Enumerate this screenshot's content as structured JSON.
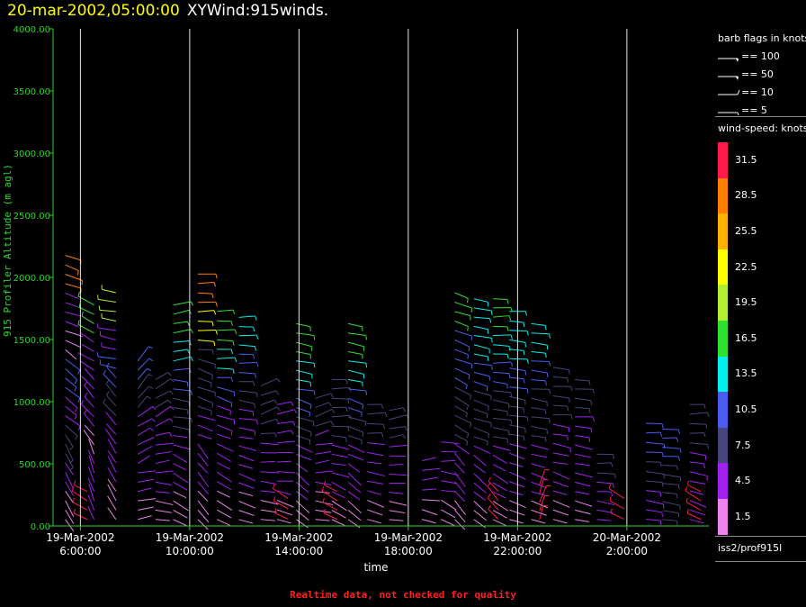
{
  "title": {
    "date": "20-mar-2002,05:00:00",
    "name": "XYWind:915winds."
  },
  "footer": "Realtime data, not checked for quality",
  "legend": {
    "flags_header": "barb flags in knots",
    "flags": [
      {
        "label": "== 100",
        "icon": "pennant-100-icon"
      },
      {
        "label": "== 50",
        "icon": "pennant-50-icon"
      },
      {
        "label": "== 10",
        "icon": "full-barb-icon"
      },
      {
        "label": "== 5",
        "icon": "half-barb-icon"
      }
    ],
    "speed_header": "wind-speed: knots",
    "colorbar": [
      {
        "label": "31.5",
        "color": "#ff1a4a"
      },
      {
        "label": "28.5",
        "color": "#ff8000"
      },
      {
        "label": "25.5",
        "color": "#ffb000"
      },
      {
        "label": "22.5",
        "color": "#ffff00"
      },
      {
        "label": "19.5",
        "color": "#b0f030"
      },
      {
        "label": "16.5",
        "color": "#30e030"
      },
      {
        "label": "13.5",
        "color": "#00f0f0"
      },
      {
        "label": "10.5",
        "color": "#4a5cf0"
      },
      {
        "label": "7.5",
        "color": "#45457a"
      },
      {
        "label": "4.5",
        "color": "#a020f0"
      },
      {
        "label": "1.5",
        "color": "#ee82ee"
      }
    ],
    "source": "iss2/prof915l"
  },
  "chart_data": {
    "type": "scatter",
    "ylabel": "915 Profiler Altitude (m agl)",
    "xlabel": "time",
    "ylim": [
      0,
      4000
    ],
    "yticks": [
      "0.00",
      "500.00",
      "1000.00",
      "1500.00",
      "2000.00",
      "2500.00",
      "3000.00",
      "3500.00",
      "4000.00"
    ],
    "xlim": [
      "2002-03-19T05:00",
      "2002-03-20T05:00"
    ],
    "xticks": [
      {
        "line1": "19-Mar-2002",
        "line2": "6:00:00",
        "t": 1
      },
      {
        "line1": "19-Mar-2002",
        "line2": "10:00:00",
        "t": 5
      },
      {
        "line1": "19-Mar-2002",
        "line2": "14:00:00",
        "t": 9
      },
      {
        "line1": "19-Mar-2002",
        "line2": "18:00:00",
        "t": 13
      },
      {
        "line1": "19-Mar-2002",
        "line2": "22:00:00",
        "t": 17
      },
      {
        "line1": "20-Mar-2002",
        "line2": "2:00:00",
        "t": 21
      }
    ],
    "grid": "vertical lines at major ticks",
    "series": [
      {
        "t": 0.45,
        "top": 2200,
        "spd": [
          2.5,
          4.5,
          6.5,
          5.0,
          10.5,
          2.0,
          3.0,
          28.5
        ],
        "dir": [
          150,
          130,
          110
        ]
      },
      {
        "t": 1.5,
        "top": 1800,
        "spd": [
          3.0,
          4.0,
          2.5,
          5.0,
          4.0,
          3.5,
          17.0
        ],
        "dir": [
          340,
          320,
          300
        ]
      },
      {
        "t": 1.25,
        "top": 300,
        "spd": [
          33.0
        ],
        "dir": [
          300
        ]
      },
      {
        "t": 2.3,
        "top": 1900,
        "spd": [
          2.0,
          3.5,
          4.0,
          6.0,
          9.0,
          5.0,
          18.0
        ],
        "dir": [
          330,
          320,
          280
        ]
      },
      {
        "t": 3.1,
        "top": 1350,
        "spd": [
          2.0,
          3.0,
          4.0,
          5.0,
          6.0,
          10.0
        ],
        "dir": [
          80,
          60,
          40
        ]
      },
      {
        "t": 3.75,
        "top": 1200,
        "spd": [
          2.0,
          3.0,
          4.0,
          5.0,
          8.0
        ],
        "dir": [
          100,
          80,
          60
        ]
      },
      {
        "t": 4.4,
        "top": 1800,
        "spd": [
          2.0,
          3.0,
          4.0,
          6.0,
          9.0,
          13.0,
          17.0
        ],
        "dir": [
          120,
          100,
          80
        ]
      },
      {
        "t": 5.3,
        "top": 2050,
        "spd": [
          2.0,
          3.5,
          4.0,
          6.0,
          8.0,
          23.0,
          27.0
        ],
        "dir": [
          140,
          110,
          90
        ]
      },
      {
        "t": 6.0,
        "top": 1750,
        "spd": [
          2.0,
          3.0,
          4.0,
          5.0,
          10.0,
          13.0,
          17.0
        ],
        "dir": [
          120,
          110,
          90
        ]
      },
      {
        "t": 6.8,
        "top": 1700,
        "spd": [
          2.0,
          3.0,
          4.0,
          5.0,
          7.0,
          11.0,
          14.0
        ],
        "dir": [
          110,
          100,
          90
        ]
      },
      {
        "t": 7.6,
        "top": 1150,
        "spd": [
          2.0,
          3.0,
          4.0,
          6.0,
          8.0
        ],
        "dir": [
          100,
          90,
          70
        ]
      },
      {
        "t": 8.2,
        "top": 1000,
        "spd": [
          2.0,
          3.0,
          4.0,
          5.0
        ],
        "dir": [
          110,
          90,
          80
        ]
      },
      {
        "t": 8.9,
        "top": 1650,
        "spd": [
          2.0,
          3.0,
          4.0,
          6.0,
          9.0,
          12.0,
          17.0
        ],
        "dir": [
          130,
          110,
          100
        ]
      },
      {
        "t": 8.6,
        "top": 250,
        "spd": [
          33.0
        ],
        "dir": [
          300
        ]
      },
      {
        "t": 9.6,
        "top": 1050,
        "spd": [
          2.0,
          3.0,
          4.0,
          7.0
        ],
        "dir": [
          100,
          80,
          70
        ]
      },
      {
        "t": 10.2,
        "top": 1200,
        "spd": [
          2.0,
          3.0,
          4.5,
          6.0,
          8.0
        ],
        "dir": [
          120,
          100,
          90
        ]
      },
      {
        "t": 10.4,
        "top": 300,
        "spd": [
          33.0
        ],
        "dir": [
          300
        ]
      },
      {
        "t": 10.8,
        "top": 1650,
        "spd": [
          2.0,
          3.0,
          4.0,
          6.0,
          9.0,
          13.0,
          17.0
        ],
        "dir": [
          130,
          110,
          100
        ]
      },
      {
        "t": 11.5,
        "top": 1000,
        "spd": [
          2.0,
          3.0,
          4.0,
          8.0
        ],
        "dir": [
          110,
          100,
          90
        ]
      },
      {
        "t": 12.3,
        "top": 950,
        "spd": [
          2.0,
          3.0,
          4.0,
          8.0
        ],
        "dir": [
          100,
          90,
          80
        ]
      },
      {
        "t": 13.5,
        "top": 550,
        "spd": [
          2.0,
          3.0
        ],
        "dir": [
          110,
          90,
          80
        ]
      },
      {
        "t": 14.2,
        "top": 700,
        "spd": [
          2.0,
          3.0,
          4.0
        ],
        "dir": [
          120,
          100,
          90
        ]
      },
      {
        "t": 14.7,
        "top": 1900,
        "spd": [
          2.0,
          3.0,
          4.0,
          6.0,
          8.0,
          10.0,
          11.0,
          17.0
        ],
        "dir": [
          140,
          120,
          110
        ]
      },
      {
        "t": 15.4,
        "top": 1850,
        "spd": [
          2.0,
          3.0,
          4.0,
          6.0,
          8.0,
          10.0,
          12.0,
          14.0
        ],
        "dir": [
          130,
          110,
          100
        ]
      },
      {
        "t": 16.1,
        "top": 1850,
        "spd": [
          2.0,
          3.0,
          4.0,
          6.0,
          8.0,
          10.0,
          12.0,
          15.0
        ],
        "dir": [
          120,
          100,
          90
        ]
      },
      {
        "t": 16.3,
        "top": 300,
        "spd": [
          33.0
        ],
        "dir": [
          320
        ]
      },
      {
        "t": 16.7,
        "top": 1750,
        "spd": [
          2.0,
          3.0,
          4.0,
          6.0,
          8.0,
          10.0,
          12.0,
          13.0
        ],
        "dir": [
          110,
          100,
          95
        ]
      },
      {
        "t": 17.5,
        "top": 1650,
        "spd": [
          2.0,
          3.0,
          4.0,
          6.0,
          8.0,
          10.0,
          12.0
        ],
        "dir": [
          110,
          100,
          95
        ]
      },
      {
        "t": 17.8,
        "top": 350,
        "spd": [
          32.0
        ],
        "dir": [
          20
        ]
      },
      {
        "t": 18.3,
        "top": 1300,
        "spd": [
          2.0,
          3.0,
          4.0,
          5.0,
          6.0,
          7.0
        ],
        "dir": [
          110,
          100,
          95
        ]
      },
      {
        "t": 19.1,
        "top": 1200,
        "spd": [
          2.0,
          3.0,
          4.0,
          5.0,
          7.0
        ],
        "dir": [
          105,
          100,
          95
        ]
      },
      {
        "t": 19.9,
        "top": 600,
        "spd": [
          3.0,
          5.0,
          6.0
        ],
        "dir": [
          100,
          95,
          90
        ]
      },
      {
        "t": 20.9,
        "top": 250,
        "spd": [
          33.0
        ],
        "dir": [
          300
        ]
      },
      {
        "t": 21.7,
        "top": 850,
        "spd": [
          5.0,
          7.0,
          9.0
        ],
        "dir": [
          100,
          95,
          90
        ]
      },
      {
        "t": 22.3,
        "top": 800,
        "spd": [
          6.0,
          8.0,
          9.0
        ],
        "dir": [
          100,
          95,
          90
        ]
      },
      {
        "t": 23.3,
        "top": 1000,
        "spd": [
          3.0,
          4.0,
          5.0,
          6.0,
          7.0
        ],
        "dir": [
          110,
          100,
          90
        ]
      },
      {
        "t": 23.7,
        "top": 300,
        "spd": [
          33.0
        ],
        "dir": [
          300
        ]
      }
    ]
  }
}
